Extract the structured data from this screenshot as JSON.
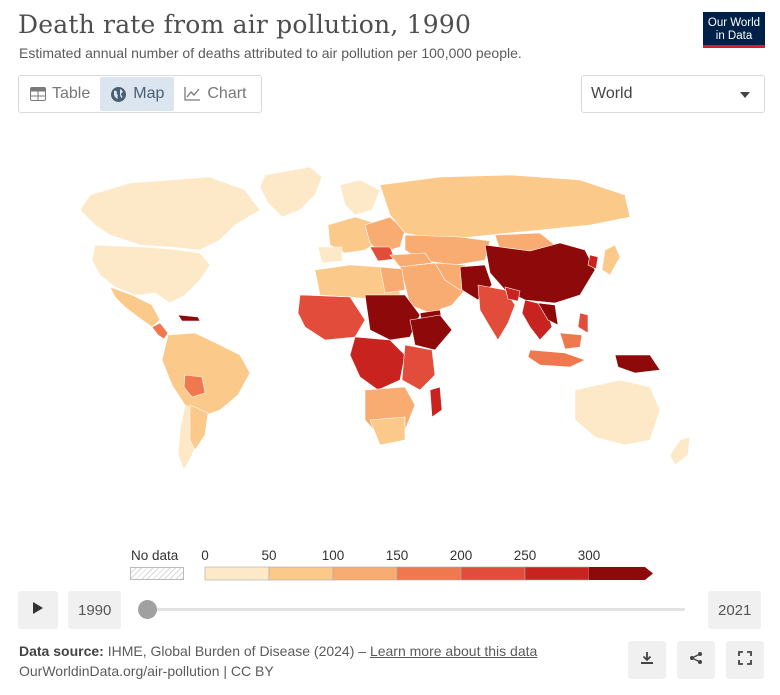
{
  "header": {
    "title": "Death rate from air pollution, 1990",
    "subtitle": "Estimated annual number of deaths attributed to air pollution per 100,000 people."
  },
  "logo": {
    "line1": "Our World",
    "line2": "in Data"
  },
  "tabs": [
    {
      "label": "Table",
      "icon": "table-icon",
      "active": false
    },
    {
      "label": "Map",
      "icon": "globe-icon",
      "active": true
    },
    {
      "label": "Chart",
      "icon": "line-chart-icon",
      "active": false
    }
  ],
  "entity_selector": {
    "value": "World"
  },
  "legend": {
    "no_data_label": "No data",
    "ticks": [
      "0",
      "50",
      "100",
      "150",
      "200",
      "250",
      "300"
    ],
    "colors": [
      "#fde9c8",
      "#fbc98a",
      "#f9ac72",
      "#f0784e",
      "#e24c3a",
      "#c8231f",
      "#8e0a0a"
    ]
  },
  "timeline": {
    "start_year": "1990",
    "end_year": "2021"
  },
  "footer": {
    "source_label": "Data source:",
    "source_text": "IHME, Global Burden of Disease (2024) – ",
    "learn_more": "Learn more about this data",
    "url": "OurWorldinData.org/air-pollution | CC BY"
  },
  "actions": [
    {
      "name": "download-button",
      "icon": "download-icon"
    },
    {
      "name": "share-button",
      "icon": "share-icon"
    },
    {
      "name": "fullscreen-button",
      "icon": "fullscreen-icon"
    }
  ]
}
